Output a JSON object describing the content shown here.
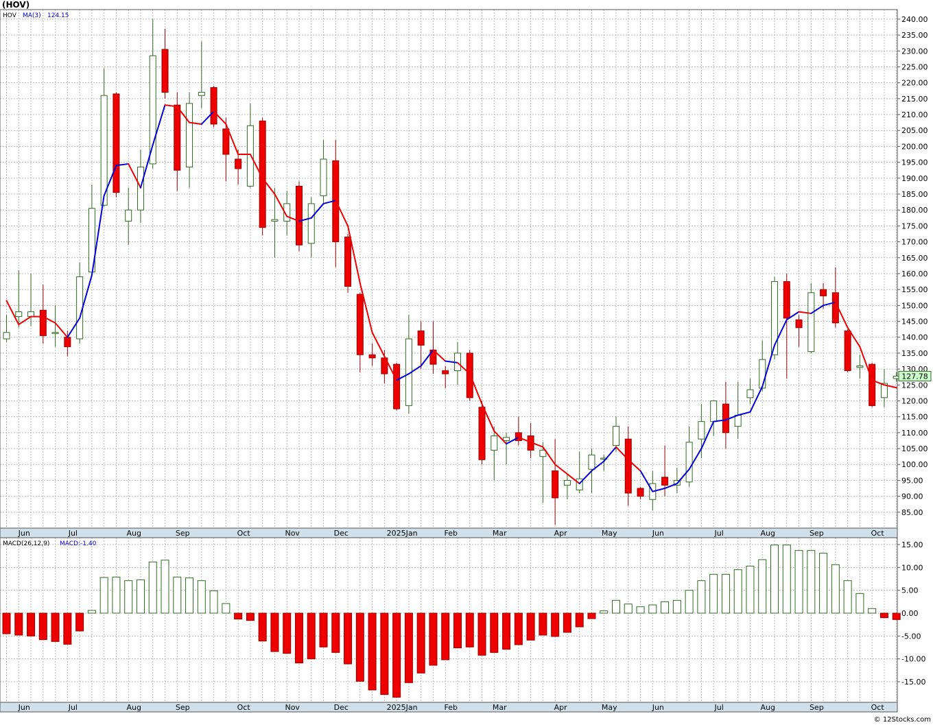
{
  "ticker_label": "(HOV)",
  "legend_top": {
    "symbol": "HOV",
    "ma_label": "MA(3)",
    "ma_value": "124.15"
  },
  "legend_bottom": {
    "macd_label": "MACD(26,12,9)",
    "macd_value": "MACD:-1.40"
  },
  "last_price_label": "127.78",
  "watermark": "© 12Stocks.com",
  "colors": {
    "up": "#2e6b1f",
    "down": "#ee0000",
    "ma_up": "#0000dd",
    "ma_down": "#ee0000",
    "grid": "#b8b8b8",
    "axis_bg": "#cfe0ea",
    "last_price_bg": "#ccffcc"
  },
  "chart_data": [
    {
      "type": "candlestick",
      "ylim": [
        80,
        243
      ],
      "yticks": [
        85,
        90,
        95,
        100,
        105,
        110,
        115,
        120,
        125,
        130,
        135,
        140,
        145,
        150,
        155,
        160,
        165,
        170,
        175,
        180,
        185,
        190,
        195,
        200,
        205,
        210,
        215,
        220,
        225,
        230,
        235,
        240
      ],
      "ytick_labels": [
        "85.00",
        "90.00",
        "95.00",
        "100.00",
        "105.00",
        "110.00",
        "115.00",
        "120.00",
        "125.00",
        "130.00",
        "135.00",
        "140.00",
        "145.00",
        "150.00",
        "155.00",
        "160.00",
        "165.00",
        "170.00",
        "175.00",
        "180.00",
        "185.00",
        "190.00",
        "195.00",
        "200.00",
        "205.00",
        "210.00",
        "215.00",
        "220.00",
        "225.00",
        "230.00",
        "235.00",
        "240.00"
      ],
      "month_labels": [
        {
          "label": "Jun",
          "index": 1
        },
        {
          "label": "Jul",
          "index": 5
        },
        {
          "label": "Aug",
          "index": 10
        },
        {
          "label": "Sep",
          "index": 14
        },
        {
          "label": "Oct",
          "index": 19
        },
        {
          "label": "Nov",
          "index": 23
        },
        {
          "label": "Dec",
          "index": 27
        },
        {
          "label": "2025Jan",
          "index": 32
        },
        {
          "label": "Feb",
          "index": 36
        },
        {
          "label": "Mar",
          "index": 40
        },
        {
          "label": "Apr",
          "index": 45
        },
        {
          "label": "May",
          "index": 49
        },
        {
          "label": "Jun",
          "index": 53
        },
        {
          "label": "Jul",
          "index": 58
        },
        {
          "label": "Aug",
          "index": 62
        },
        {
          "label": "Sep",
          "index": 66
        },
        {
          "label": "Oct",
          "index": 71
        }
      ],
      "candles": [
        {
          "o": 139.5,
          "h": 147,
          "l": 138.5,
          "c": 141.5
        },
        {
          "o": 146.5,
          "h": 161,
          "l": 143,
          "c": 148
        },
        {
          "o": 146.5,
          "h": 160,
          "l": 143.5,
          "c": 148
        },
        {
          "o": 148.5,
          "h": 156.5,
          "l": 138,
          "c": 140.5
        },
        {
          "o": 141.5,
          "h": 150,
          "l": 137,
          "c": 141.5
        },
        {
          "o": 140,
          "h": 142,
          "l": 134,
          "c": 137
        },
        {
          "o": 139.5,
          "h": 163.5,
          "l": 138,
          "c": 159
        },
        {
          "o": 160.5,
          "h": 188,
          "l": 160,
          "c": 180.5
        },
        {
          "o": 181.5,
          "h": 224.5,
          "l": 181,
          "c": 216
        },
        {
          "o": 216.5,
          "h": 217,
          "l": 184,
          "c": 185.5
        },
        {
          "o": 176.5,
          "h": 187,
          "l": 169,
          "c": 180
        },
        {
          "o": 180,
          "h": 199,
          "l": 176,
          "c": 193.5
        },
        {
          "o": 194.5,
          "h": 240,
          "l": 193,
          "c": 228.5
        },
        {
          "o": 230.5,
          "h": 237,
          "l": 215,
          "c": 217
        },
        {
          "o": 213,
          "h": 217,
          "l": 186,
          "c": 192.5
        },
        {
          "o": 193.5,
          "h": 217,
          "l": 187,
          "c": 213.5
        },
        {
          "o": 216,
          "h": 233,
          "l": 212,
          "c": 217
        },
        {
          "o": 218.5,
          "h": 219,
          "l": 206,
          "c": 207
        },
        {
          "o": 205.5,
          "h": 209,
          "l": 189,
          "c": 197.5
        },
        {
          "o": 196,
          "h": 199,
          "l": 188,
          "c": 193
        },
        {
          "o": 187.5,
          "h": 213.5,
          "l": 187,
          "c": 206.5
        },
        {
          "o": 208,
          "h": 209,
          "l": 172,
          "c": 174.5
        },
        {
          "o": 176.5,
          "h": 187,
          "l": 165,
          "c": 177
        },
        {
          "o": 176.5,
          "h": 186,
          "l": 172,
          "c": 182
        },
        {
          "o": 187.5,
          "h": 189,
          "l": 167,
          "c": 169
        },
        {
          "o": 169.5,
          "h": 184,
          "l": 165,
          "c": 182
        },
        {
          "o": 184.5,
          "h": 202,
          "l": 182,
          "c": 196
        },
        {
          "o": 195.5,
          "h": 202,
          "l": 162,
          "c": 170
        },
        {
          "o": 171.5,
          "h": 172.5,
          "l": 154,
          "c": 156
        },
        {
          "o": 153.5,
          "h": 154,
          "l": 129,
          "c": 134.5
        },
        {
          "o": 134.5,
          "h": 138,
          "l": 131,
          "c": 133.5
        },
        {
          "o": 133.5,
          "h": 136,
          "l": 125.5,
          "c": 128.5
        },
        {
          "o": 131.5,
          "h": 132,
          "l": 117,
          "c": 117.5
        },
        {
          "o": 118.5,
          "h": 147,
          "l": 116,
          "c": 139.5
        },
        {
          "o": 142,
          "h": 145,
          "l": 130,
          "c": 137.5
        },
        {
          "o": 136,
          "h": 145,
          "l": 128.5,
          "c": 131.5
        },
        {
          "o": 129.5,
          "h": 131,
          "l": 124,
          "c": 128.5
        },
        {
          "o": 129.5,
          "h": 138.5,
          "l": 125,
          "c": 135
        },
        {
          "o": 135,
          "h": 136,
          "l": 120,
          "c": 121
        },
        {
          "o": 118,
          "h": 120,
          "l": 100,
          "c": 101.5
        },
        {
          "o": 104.5,
          "h": 112,
          "l": 95,
          "c": 109
        },
        {
          "o": 107.5,
          "h": 110,
          "l": 100,
          "c": 108.5
        },
        {
          "o": 110,
          "h": 115,
          "l": 106,
          "c": 107.5
        },
        {
          "o": 109,
          "h": 113,
          "l": 102,
          "c": 104.5
        },
        {
          "o": 102.5,
          "h": 107,
          "l": 88,
          "c": 104.5
        },
        {
          "o": 98,
          "h": 108,
          "l": 81,
          "c": 89.5
        },
        {
          "o": 93.5,
          "h": 97,
          "l": 89,
          "c": 95
        },
        {
          "o": 92,
          "h": 104,
          "l": 91,
          "c": 95.5
        },
        {
          "o": 98.5,
          "h": 105,
          "l": 91,
          "c": 103
        },
        {
          "o": 102,
          "h": 103,
          "l": 98,
          "c": 102
        },
        {
          "o": 106,
          "h": 115,
          "l": 104,
          "c": 112
        },
        {
          "o": 108,
          "h": 112,
          "l": 87,
          "c": 91
        },
        {
          "o": 92.5,
          "h": 93,
          "l": 89,
          "c": 90
        },
        {
          "o": 89,
          "h": 98,
          "l": 85.5,
          "c": 94
        },
        {
          "o": 96,
          "h": 106,
          "l": 90,
          "c": 93.5
        },
        {
          "o": 93.5,
          "h": 99,
          "l": 91,
          "c": 95
        },
        {
          "o": 94.5,
          "h": 112,
          "l": 93,
          "c": 107
        },
        {
          "o": 108,
          "h": 119,
          "l": 102,
          "c": 113.5
        },
        {
          "o": 113.5,
          "h": 120,
          "l": 109,
          "c": 120
        },
        {
          "o": 119,
          "h": 126,
          "l": 105,
          "c": 110
        },
        {
          "o": 112,
          "h": 126,
          "l": 108,
          "c": 115.5
        },
        {
          "o": 121,
          "h": 127,
          "l": 119,
          "c": 123.5
        },
        {
          "o": 124,
          "h": 139,
          "l": 123,
          "c": 133
        },
        {
          "o": 134.5,
          "h": 159,
          "l": 133,
          "c": 157.5
        },
        {
          "o": 157.5,
          "h": 160,
          "l": 127,
          "c": 146
        },
        {
          "o": 145.5,
          "h": 147,
          "l": 137,
          "c": 143
        },
        {
          "o": 135.5,
          "h": 157,
          "l": 135,
          "c": 154
        },
        {
          "o": 155,
          "h": 157,
          "l": 149,
          "c": 153
        },
        {
          "o": 154,
          "h": 162,
          "l": 143,
          "c": 144.5
        },
        {
          "o": 142,
          "h": 142.5,
          "l": 129,
          "c": 129.5
        },
        {
          "o": 130.5,
          "h": 134.5,
          "l": 127,
          "c": 131
        },
        {
          "o": 131.5,
          "h": 132,
          "l": 118,
          "c": 118.5
        },
        {
          "o": 121,
          "h": 130,
          "l": 118,
          "c": 125.5
        },
        {
          "o": 127,
          "h": 129,
          "l": 126,
          "c": 127.78
        }
      ],
      "ma3": [
        151.5,
        144,
        146.5,
        146.5,
        144.5,
        140,
        146,
        159.5,
        184.5,
        194,
        194.5,
        187,
        200.5,
        213,
        212.5,
        207.5,
        207,
        211,
        207,
        197.5,
        197.5,
        190,
        185,
        178,
        176.5,
        177.5,
        182,
        183,
        175,
        157,
        141.5,
        134,
        126.5,
        128.5,
        131,
        136,
        132.5,
        132,
        128.5,
        119,
        110.5,
        106.5,
        108.5,
        107,
        105.5,
        100,
        97,
        94,
        98,
        101,
        105.5,
        101.5,
        98,
        91.5,
        92.5,
        94,
        98.5,
        105,
        113.5,
        114,
        115.5,
        116.5,
        124.5,
        137.5,
        145.5,
        148,
        147.5,
        150,
        151,
        143,
        137,
        126.5,
        125,
        124.15
      ],
      "ma3_dir": [
        "d",
        "d",
        "d",
        "d",
        "d",
        "d",
        "u",
        "u",
        "u",
        "u",
        "u",
        "d",
        "u",
        "u",
        "d",
        "d",
        "d",
        "u",
        "d",
        "d",
        "d",
        "d",
        "d",
        "d",
        "d",
        "u",
        "u",
        "u",
        "d",
        "d",
        "d",
        "d",
        "d",
        "u",
        "u",
        "u",
        "d",
        "u",
        "d",
        "d",
        "d",
        "d",
        "u",
        "d",
        "d",
        "d",
        "d",
        "d",
        "u",
        "u",
        "u",
        "d",
        "d",
        "u",
        "u",
        "u",
        "u",
        "u",
        "u",
        "u",
        "u",
        "u",
        "u",
        "u",
        "u",
        "u",
        "d",
        "u",
        "u",
        "d",
        "d",
        "d",
        "d",
        "d"
      ]
    },
    {
      "type": "bar",
      "name": "MACD(26,12,9)",
      "ylim": [
        -19.5,
        16.5
      ],
      "yticks": [
        -15,
        -10,
        -5,
        0,
        5,
        10,
        15
      ],
      "ytick_labels": [
        "-15.00",
        "-10.00",
        "-5.00",
        "0.00",
        "5.00",
        "10.00",
        "15.00"
      ],
      "values": [
        -4.5,
        -4.8,
        -5,
        -5.8,
        -6.2,
        -6.8,
        -3.9,
        0.6,
        7.8,
        7.9,
        7.1,
        7.3,
        11.2,
        11.6,
        7.9,
        7.7,
        7.1,
        4.9,
        2.1,
        -1.3,
        -1.6,
        -6.1,
        -8.4,
        -8.8,
        -10.9,
        -10,
        -7.4,
        -8.6,
        -11.1,
        -14.9,
        -16.8,
        -17.8,
        -18.4,
        -15.2,
        -13.1,
        -11.4,
        -10.2,
        -7.6,
        -7.4,
        -9.2,
        -8.6,
        -7.9,
        -6.9,
        -5.9,
        -4.8,
        -5.1,
        -4.2,
        -3,
        -1.2,
        0.5,
        2.8,
        2,
        1.4,
        1.8,
        2.5,
        2.8,
        5,
        7.1,
        8.5,
        8.5,
        9.5,
        10.3,
        11.7,
        14.9,
        14.9,
        13.7,
        13.7,
        13.1,
        10.6,
        7.1,
        4.3,
        1,
        -1,
        -1.4
      ]
    }
  ]
}
